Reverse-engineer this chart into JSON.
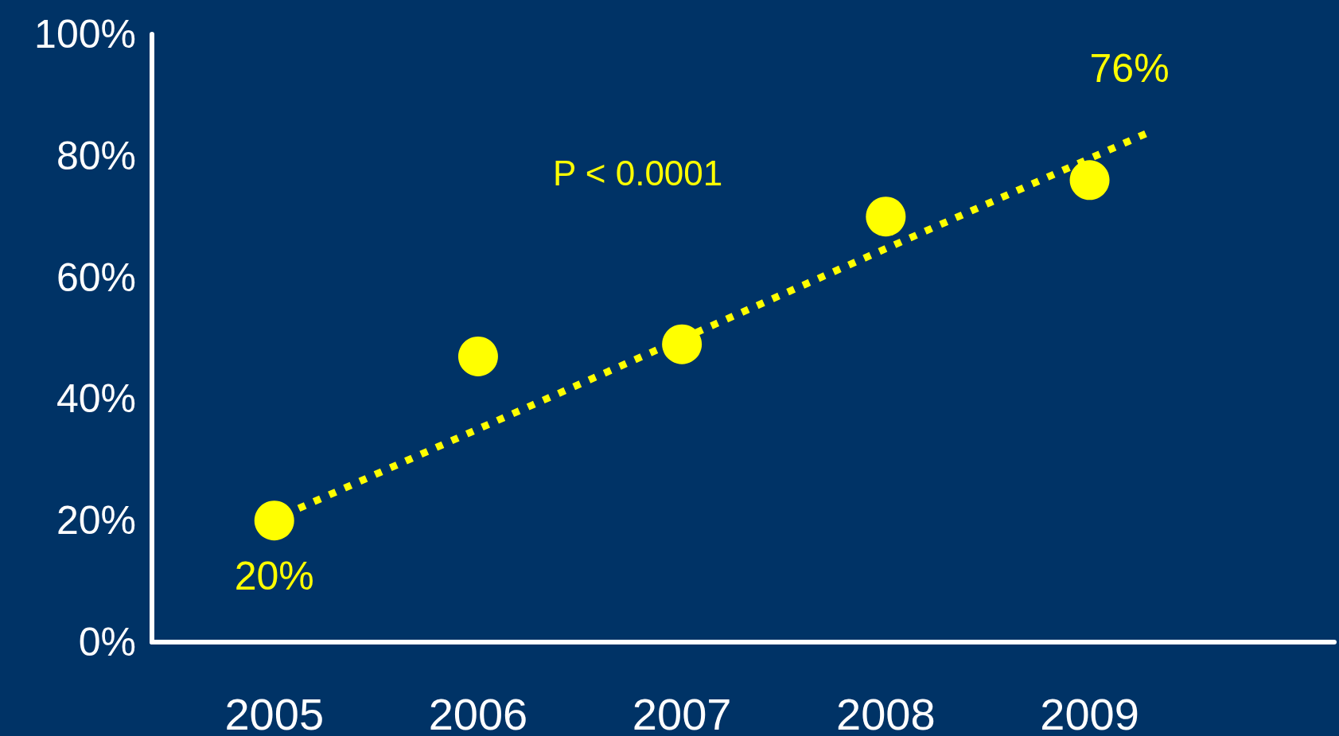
{
  "chart_data": {
    "type": "scatter",
    "x": [
      2005,
      2006,
      2007,
      2008,
      2009
    ],
    "series": [
      {
        "color": "#ffff00",
        "values": [
          20,
          47,
          49,
          70,
          76
        ],
        "value_labels": [
          "20%",
          null,
          null,
          null,
          "76%"
        ],
        "marker": "circle"
      },
      {
        "type": "line",
        "color": "#ffff00",
        "x": [
          2005.12,
          2009.3
        ],
        "values": [
          22,
          84
        ],
        "line_style": "dotted",
        "marker": "none"
      }
    ],
    "xlim": [
      2004.4,
      2010.2
    ],
    "xticks": [
      2005,
      2006,
      2007,
      2008,
      2009
    ],
    "ylim": [
      0,
      100
    ],
    "yticks": [
      {
        "value": 0,
        "label": "0%"
      },
      {
        "value": 20,
        "label": "20%"
      },
      {
        "value": 40,
        "label": "40%"
      },
      {
        "value": 60,
        "label": "60%"
      },
      {
        "value": 80,
        "label": "80%"
      },
      {
        "value": 100,
        "label": "100%"
      }
    ],
    "annotations": [
      "P < 0.0001"
    ],
    "grid": false
  }
}
